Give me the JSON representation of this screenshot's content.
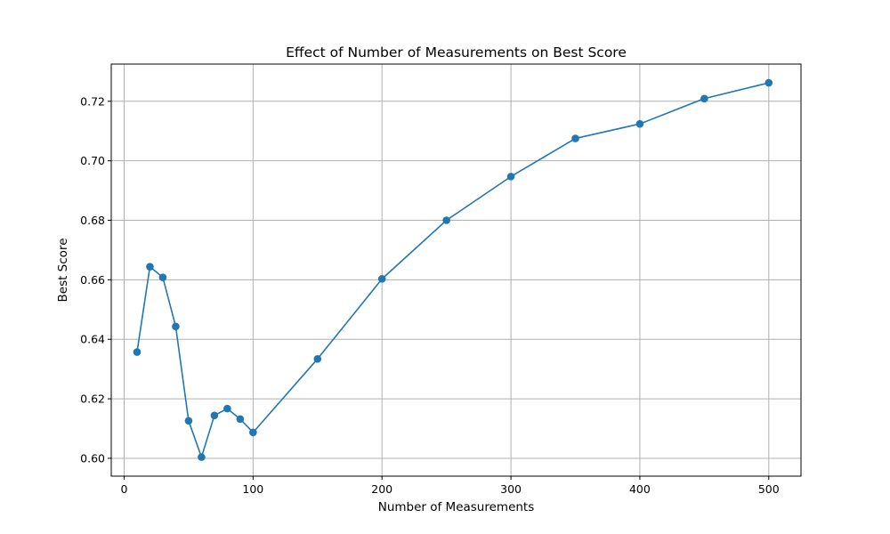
{
  "chart_data": {
    "type": "line",
    "title": "Effect of Number of Measurements on Best Score",
    "xlabel": "Number of Measurements",
    "ylabel": "Best Score",
    "xlim": [
      -10,
      525
    ],
    "ylim": [
      0.594,
      0.7325
    ],
    "xticks": [
      0,
      100,
      200,
      300,
      400,
      500
    ],
    "yticks": [
      0.6,
      0.62,
      0.64,
      0.66,
      0.68,
      0.7,
      0.72
    ],
    "grid": true,
    "series": [
      {
        "x": [
          10,
          20,
          30,
          40,
          50,
          60,
          70,
          80,
          90,
          100,
          150,
          200,
          250,
          300,
          350,
          400,
          450,
          500
        ],
        "y": [
          0.6357,
          0.6644,
          0.6608,
          0.6443,
          0.6126,
          0.6004,
          0.6144,
          0.6167,
          0.6132,
          0.6087,
          0.6334,
          0.6603,
          0.68,
          0.6947,
          0.7075,
          0.7124,
          0.7209,
          0.7262
        ],
        "color": "#1f77b4",
        "marker": "circle"
      }
    ]
  },
  "colors": {
    "series": "#1f77b4",
    "grid": "#b0b0b0",
    "axes": "#000000"
  }
}
